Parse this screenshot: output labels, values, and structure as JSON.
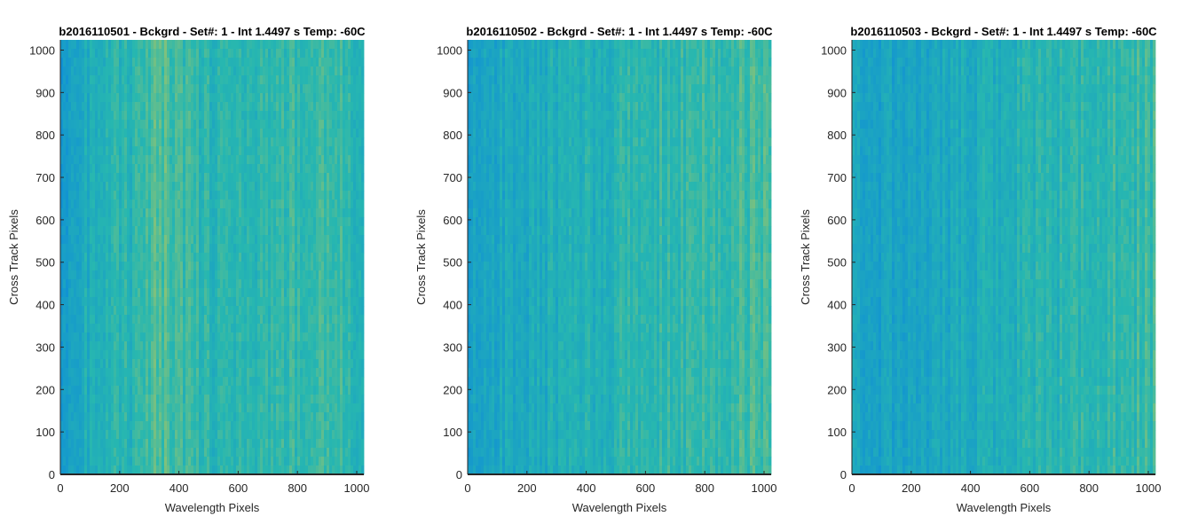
{
  "chart_data": [
    {
      "type": "heatmap",
      "title": "b2016110501 - Bckgrd - Set#: 1 - Int 1.4497 s Temp: -60C",
      "xlabel": "Wavelength Pixels",
      "ylabel": "Cross Track Pixels",
      "xlim": [
        0,
        1024
      ],
      "ylim": [
        0,
        1024
      ],
      "xticks": [
        0,
        200,
        400,
        600,
        800,
        1000
      ],
      "yticks": [
        0,
        100,
        200,
        300,
        400,
        500,
        600,
        700,
        800,
        900,
        1000
      ],
      "xtick_labels": [
        "0",
        "200",
        "400",
        "600",
        "800",
        "1000"
      ],
      "ytick_labels": [
        "0",
        "100",
        "200",
        "300",
        "400",
        "500",
        "600",
        "700",
        "800",
        "900",
        "1000"
      ],
      "colors": {
        "low": "#0f8fd6",
        "mid": "#27b7b0",
        "high": "#b9c85a"
      },
      "column_profile": [
        {
          "x": 0,
          "level": 0.18
        },
        {
          "x": 60,
          "level": 0.32
        },
        {
          "x": 150,
          "level": 0.42
        },
        {
          "x": 250,
          "level": 0.48
        },
        {
          "x": 340,
          "level": 0.66
        },
        {
          "x": 420,
          "level": 0.55
        },
        {
          "x": 520,
          "level": 0.46
        },
        {
          "x": 640,
          "level": 0.5
        },
        {
          "x": 760,
          "level": 0.5
        },
        {
          "x": 880,
          "level": 0.62
        },
        {
          "x": 960,
          "level": 0.56
        },
        {
          "x": 1024,
          "level": 0.44
        }
      ]
    },
    {
      "type": "heatmap",
      "title": "b2016110502 - Bckgrd - Set#: 1 - Int 1.4497 s Temp: -60C",
      "xlabel": "Wavelength Pixels",
      "ylabel": "Cross Track Pixels",
      "xlim": [
        0,
        1024
      ],
      "ylim": [
        0,
        1024
      ],
      "xticks": [
        0,
        200,
        400,
        600,
        800,
        1000
      ],
      "yticks": [
        0,
        100,
        200,
        300,
        400,
        500,
        600,
        700,
        800,
        900,
        1000
      ],
      "xtick_labels": [
        "0",
        "200",
        "400",
        "600",
        "800",
        "1000"
      ],
      "ytick_labels": [
        "0",
        "100",
        "200",
        "300",
        "400",
        "500",
        "600",
        "700",
        "800",
        "900",
        "1000"
      ],
      "colors": {
        "low": "#0f8fd6",
        "mid": "#27b7b0",
        "high": "#b9c85a"
      },
      "column_profile": [
        {
          "x": 0,
          "level": 0.2
        },
        {
          "x": 100,
          "level": 0.3
        },
        {
          "x": 250,
          "level": 0.36
        },
        {
          "x": 400,
          "level": 0.4
        },
        {
          "x": 550,
          "level": 0.48
        },
        {
          "x": 650,
          "level": 0.5
        },
        {
          "x": 800,
          "level": 0.54
        },
        {
          "x": 920,
          "level": 0.58
        },
        {
          "x": 1024,
          "level": 0.6
        }
      ]
    },
    {
      "type": "heatmap",
      "title": "b2016110503 - Bckgrd - Set#: 1 - Int 1.4497 s Temp: -60C",
      "xlabel": "Wavelength Pixels",
      "ylabel": "Cross Track Pixels",
      "xlim": [
        0,
        1024
      ],
      "ylim": [
        0,
        1024
      ],
      "xticks": [
        0,
        200,
        400,
        600,
        800,
        1000
      ],
      "yticks": [
        0,
        100,
        200,
        300,
        400,
        500,
        600,
        700,
        800,
        900,
        1000
      ],
      "xtick_labels": [
        "0",
        "200",
        "400",
        "600",
        "800",
        "1000"
      ],
      "ytick_labels": [
        "0",
        "100",
        "200",
        "300",
        "400",
        "500",
        "600",
        "700",
        "800",
        "900",
        "1000"
      ],
      "colors": {
        "low": "#0f8fd6",
        "mid": "#27b7b0",
        "high": "#b9c85a"
      },
      "column_profile": [
        {
          "x": 0,
          "level": 0.3
        },
        {
          "x": 80,
          "level": 0.24
        },
        {
          "x": 180,
          "level": 0.22
        },
        {
          "x": 300,
          "level": 0.3
        },
        {
          "x": 450,
          "level": 0.38
        },
        {
          "x": 600,
          "level": 0.44
        },
        {
          "x": 750,
          "level": 0.48
        },
        {
          "x": 900,
          "level": 0.52
        },
        {
          "x": 1024,
          "level": 0.56
        }
      ]
    }
  ]
}
